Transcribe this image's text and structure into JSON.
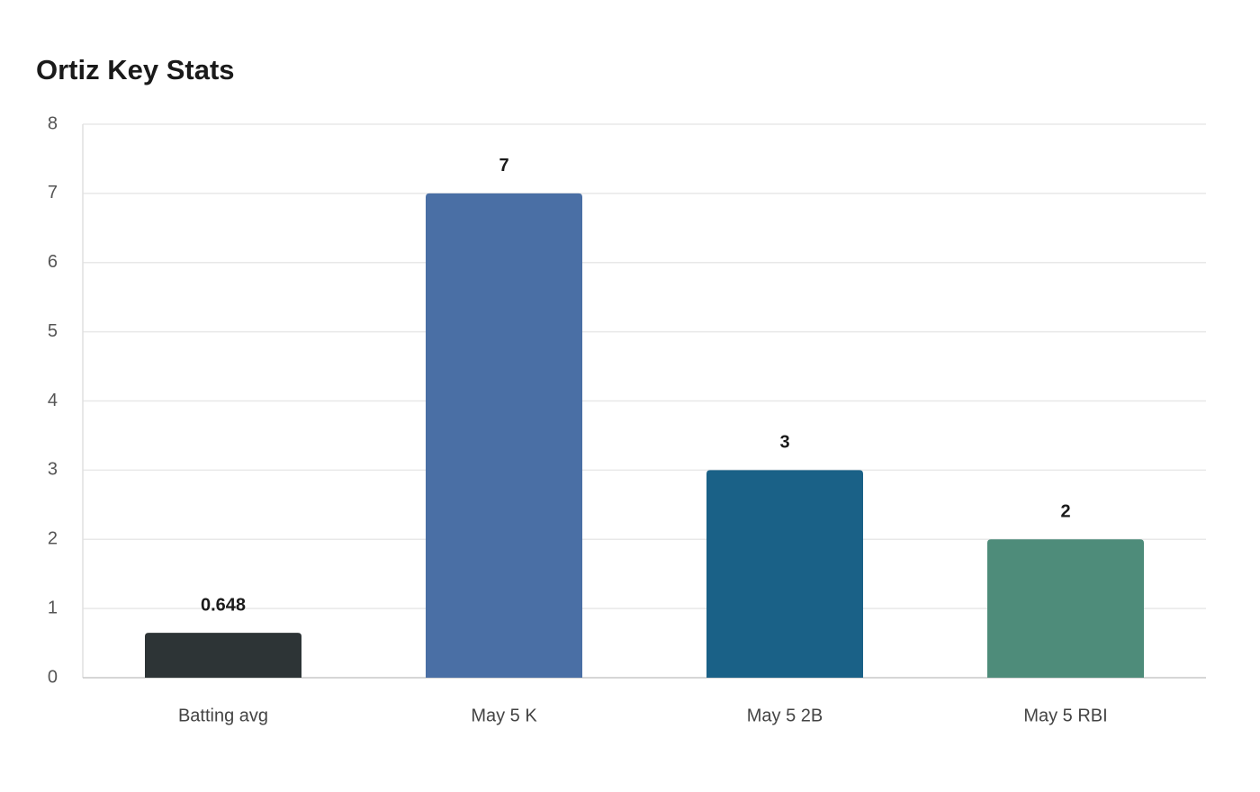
{
  "chart_data": {
    "type": "bar",
    "title": "Ortiz Key Stats",
    "categories": [
      "Batting avg",
      "May 5 K",
      "May 5 2B",
      "May 5 RBI"
    ],
    "values": [
      0.648,
      7,
      3,
      2
    ],
    "colors": [
      "#2d3436",
      "#4a6fa5",
      "#1a6187",
      "#4e8c7a"
    ],
    "ylim": [
      0,
      8
    ],
    "yticks": [
      0,
      1,
      2,
      3,
      4,
      5,
      6,
      7,
      8
    ],
    "grid": true
  }
}
